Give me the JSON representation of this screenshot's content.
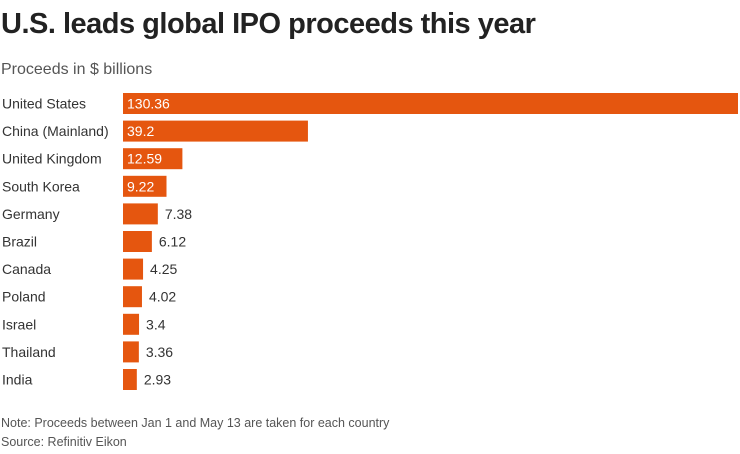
{
  "title": "U.S. leads global IPO proceeds this year",
  "subtitle": "Proceeds in $ billions",
  "note": "Note: Proceeds between Jan 1 and May 13 are taken for each country",
  "source": "Source: Refinitiv Eikon",
  "chart_data": {
    "type": "bar",
    "orientation": "horizontal",
    "title": "U.S. leads global IPO proceeds this year",
    "subtitle": "Proceeds in $ billions",
    "categories": [
      "United States",
      "China (Mainland)",
      "United Kingdom",
      "South Korea",
      "Germany",
      "Brazil",
      "Canada",
      "Poland",
      "Israel",
      "Thailand",
      "India"
    ],
    "values": [
      130.36,
      39.2,
      12.59,
      9.22,
      7.38,
      6.12,
      4.25,
      4.02,
      3.4,
      3.36,
      2.93
    ],
    "value_labels": [
      "130.36",
      "39.2",
      "12.59",
      "9.22",
      "7.38",
      "6.12",
      "4.25",
      "4.02",
      "3.4",
      "3.36",
      "2.93"
    ],
    "grid": false,
    "bar_color": "#e5560f"
  }
}
